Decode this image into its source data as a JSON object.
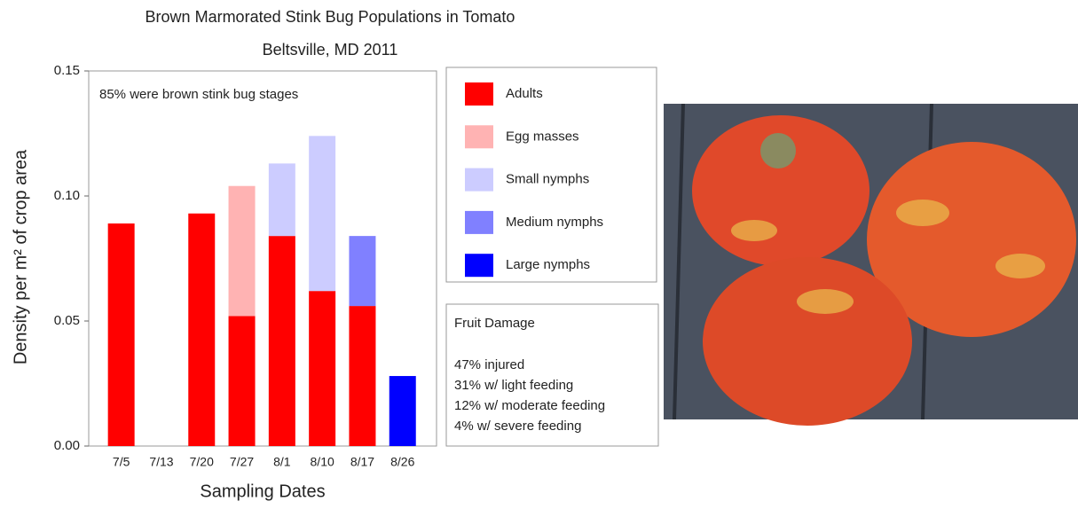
{
  "chart_data": {
    "type": "stacked-bar",
    "title": "Brown Marmorated Stink Bug Populations in Tomato",
    "subtitle": "Beltsville, MD 2011",
    "y_label": "Density per m² of crop area",
    "x_label": "Sampling Dates",
    "annotation": "85% were brown stink bug stages",
    "categories": [
      "7/5",
      "7/13",
      "7/20",
      "7/27",
      "8/1",
      "8/10",
      "8/17",
      "8/26"
    ],
    "series": [
      {
        "name": "Adults",
        "color": "#ff0000",
        "values": [
          0.089,
          0,
          0.093,
          0.052,
          0.084,
          0.062,
          0.056,
          0
        ]
      },
      {
        "name": "Egg masses",
        "color": "#ffb3b3",
        "values": [
          0,
          0,
          0,
          0.052,
          0,
          0,
          0,
          0
        ]
      },
      {
        "name": "Small nymphs",
        "color": "#ccccff",
        "values": [
          0,
          0,
          0,
          0,
          0.029,
          0.062,
          0,
          0
        ]
      },
      {
        "name": "Medium nymphs",
        "color": "#8080ff",
        "values": [
          0,
          0,
          0,
          0,
          0,
          0,
          0.028,
          0
        ]
      },
      {
        "name": "Large nymphs",
        "color": "#0000ff",
        "values": [
          0,
          0,
          0,
          0,
          0,
          0,
          0,
          0.028
        ]
      }
    ],
    "ylim": [
      0,
      0.15
    ],
    "yticks": [
      {
        "value": 0,
        "label": "0.00"
      },
      {
        "value": 0.05,
        "label": "0.05"
      },
      {
        "value": 0.1,
        "label": "0.10"
      },
      {
        "value": 0.15,
        "label": "0.15"
      }
    ],
    "damage_box": {
      "title": "Fruit Damage",
      "lines": [
        "47% injured",
        "31% w/ light feeding",
        "12% w/ moderate feeding",
        "4% w/ severe feeding"
      ]
    }
  }
}
